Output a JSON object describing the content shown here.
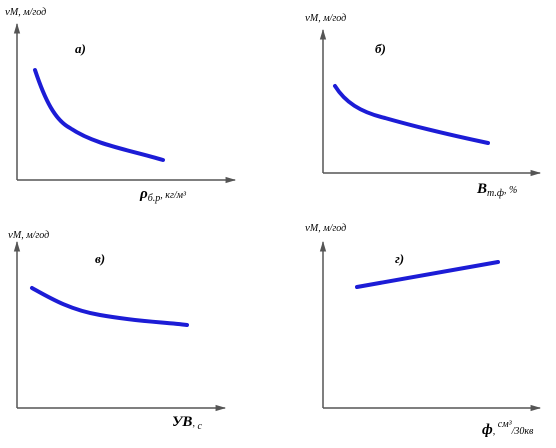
{
  "panels": [
    {
      "letter": "а)",
      "y_label": {
        "symbol": "v",
        "subscript": "М",
        "unit": ", м/год"
      },
      "x_label": [
        "ρ",
        "б.р",
        ", ",
        "кг/м³"
      ]
    },
    {
      "letter": "б)",
      "y_label": {
        "symbol": "v",
        "subscript": "М",
        "unit": ", м/год"
      },
      "x_label": [
        "B",
        "т.ф",
        ", %"
      ]
    },
    {
      "letter": "в)",
      "y_label": {
        "symbol": "v",
        "subscript": "М",
        "unit": ", м/год"
      },
      "x_label": [
        "УВ",
        ", ",
        "с"
      ]
    },
    {
      "letter": "г)",
      "y_label": {
        "symbol": "v",
        "subscript": "М",
        "unit": ", м/год"
      },
      "x_label": [
        "ф",
        ", ",
        "см³",
        "/30кв"
      ]
    }
  ]
}
